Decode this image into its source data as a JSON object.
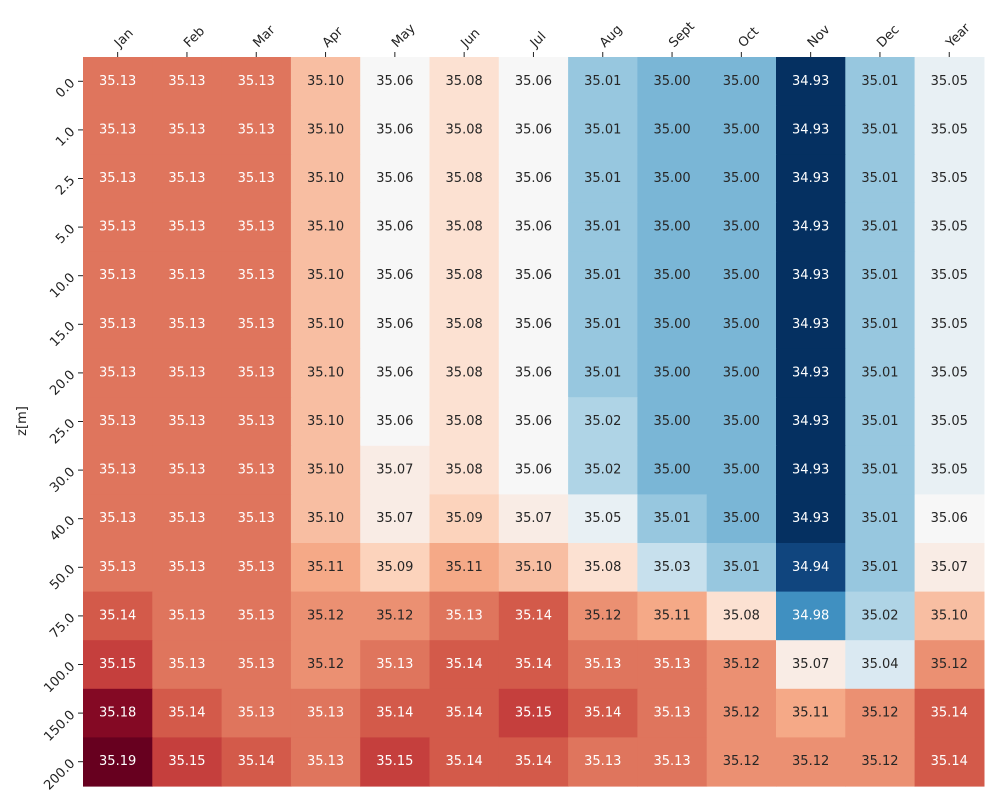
{
  "chart_data": {
    "type": "heatmap",
    "title": "",
    "xlabel": "",
    "ylabel": "z[m]",
    "colormap": "RdBu_r",
    "color_range": [
      34.93,
      35.19
    ],
    "x_tick_position": "top",
    "columns": [
      "Jan",
      "Feb",
      "Mar",
      "Apr",
      "May",
      "Jun",
      "Jul",
      "Aug",
      "Sept",
      "Oct",
      "Nov",
      "Dec",
      "Year"
    ],
    "rows": [
      "0.0",
      "1.0",
      "2.5",
      "5.0",
      "10.0",
      "15.0",
      "20.0",
      "25.0",
      "30.0",
      "40.0",
      "50.0",
      "75.0",
      "100.0",
      "150.0",
      "200.0"
    ],
    "values": [
      [
        "35.13",
        "35.13",
        "35.13",
        "35.10",
        "35.06",
        "35.08",
        "35.06",
        "35.01",
        "35.00",
        "35.00",
        "34.93",
        "35.01",
        "35.05"
      ],
      [
        "35.13",
        "35.13",
        "35.13",
        "35.10",
        "35.06",
        "35.08",
        "35.06",
        "35.01",
        "35.00",
        "35.00",
        "34.93",
        "35.01",
        "35.05"
      ],
      [
        "35.13",
        "35.13",
        "35.13",
        "35.10",
        "35.06",
        "35.08",
        "35.06",
        "35.01",
        "35.00",
        "35.00",
        "34.93",
        "35.01",
        "35.05"
      ],
      [
        "35.13",
        "35.13",
        "35.13",
        "35.10",
        "35.06",
        "35.08",
        "35.06",
        "35.01",
        "35.00",
        "35.00",
        "34.93",
        "35.01",
        "35.05"
      ],
      [
        "35.13",
        "35.13",
        "35.13",
        "35.10",
        "35.06",
        "35.08",
        "35.06",
        "35.01",
        "35.00",
        "35.00",
        "34.93",
        "35.01",
        "35.05"
      ],
      [
        "35.13",
        "35.13",
        "35.13",
        "35.10",
        "35.06",
        "35.08",
        "35.06",
        "35.01",
        "35.00",
        "35.00",
        "34.93",
        "35.01",
        "35.05"
      ],
      [
        "35.13",
        "35.13",
        "35.13",
        "35.10",
        "35.06",
        "35.08",
        "35.06",
        "35.01",
        "35.00",
        "35.00",
        "34.93",
        "35.01",
        "35.05"
      ],
      [
        "35.13",
        "35.13",
        "35.13",
        "35.10",
        "35.06",
        "35.08",
        "35.06",
        "35.02",
        "35.00",
        "35.00",
        "34.93",
        "35.01",
        "35.05"
      ],
      [
        "35.13",
        "35.13",
        "35.13",
        "35.10",
        "35.07",
        "35.08",
        "35.06",
        "35.02",
        "35.00",
        "35.00",
        "34.93",
        "35.01",
        "35.05"
      ],
      [
        "35.13",
        "35.13",
        "35.13",
        "35.10",
        "35.07",
        "35.09",
        "35.07",
        "35.05",
        "35.01",
        "35.00",
        "34.93",
        "35.01",
        "35.06"
      ],
      [
        "35.13",
        "35.13",
        "35.13",
        "35.11",
        "35.09",
        "35.11",
        "35.10",
        "35.08",
        "35.03",
        "35.01",
        "34.94",
        "35.01",
        "35.07"
      ],
      [
        "35.14",
        "35.13",
        "35.13",
        "35.12",
        "35.12",
        "35.13",
        "35.14",
        "35.12",
        "35.11",
        "35.08",
        "34.98",
        "35.02",
        "35.10"
      ],
      [
        "35.15",
        "35.13",
        "35.13",
        "35.12",
        "35.13",
        "35.14",
        "35.14",
        "35.13",
        "35.13",
        "35.12",
        "35.07",
        "35.04",
        "35.12"
      ],
      [
        "35.18",
        "35.14",
        "35.13",
        "35.13",
        "35.14",
        "35.14",
        "35.15",
        "35.14",
        "35.13",
        "35.12",
        "35.11",
        "35.12",
        "35.14"
      ],
      [
        "35.19",
        "35.15",
        "35.14",
        "35.13",
        "35.15",
        "35.14",
        "35.14",
        "35.13",
        "35.13",
        "35.12",
        "35.12",
        "35.12",
        "35.14"
      ]
    ]
  }
}
